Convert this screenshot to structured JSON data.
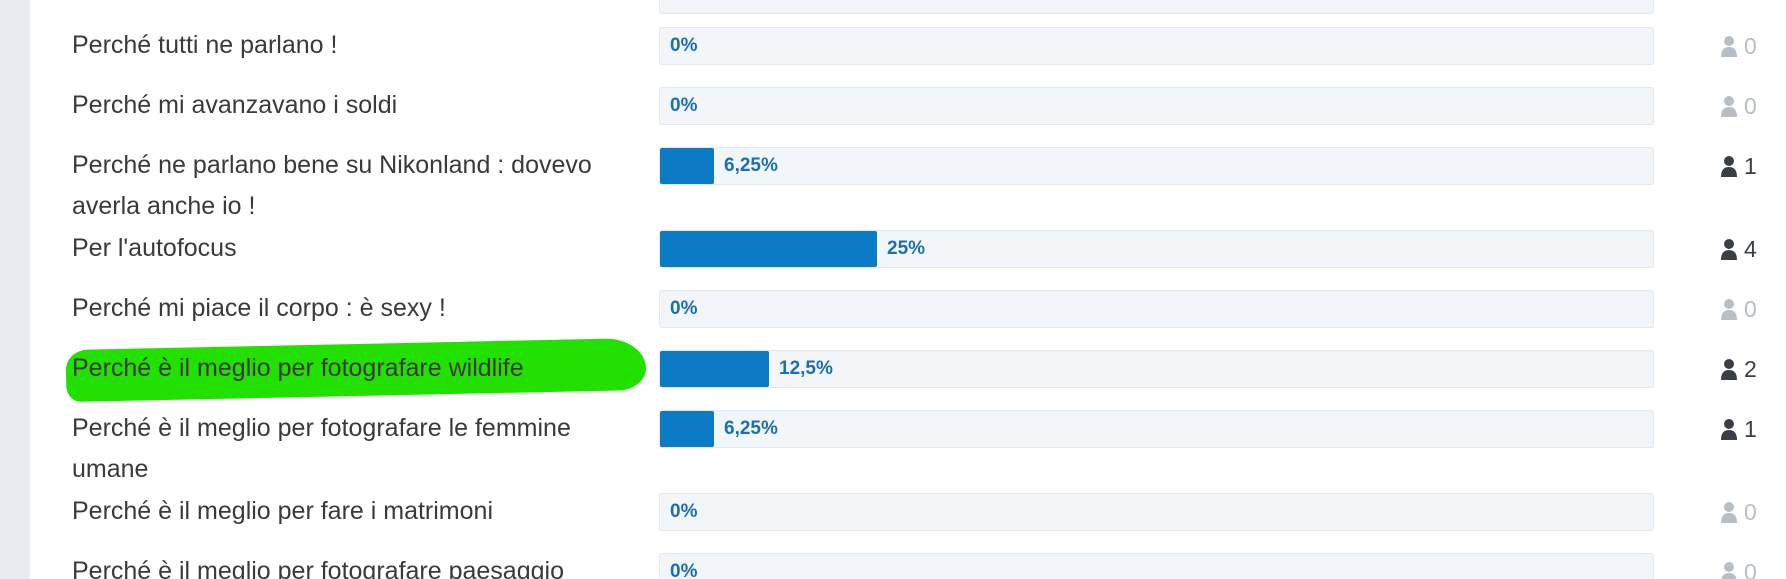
{
  "poll": {
    "options": [
      {
        "label": "Perché tutti ne parlano !",
        "percent_text": "0%",
        "percent": 0,
        "voters": "0"
      },
      {
        "label": "Perché mi avanzavano i soldi",
        "percent_text": "0%",
        "percent": 0,
        "voters": "0"
      },
      {
        "label": "Perché ne parlano bene su Nikonland : dovevo averla anche io !",
        "percent_text": "6,25%",
        "percent": 6.25,
        "voters": "1"
      },
      {
        "label": "Per l'autofocus",
        "percent_text": "25%",
        "percent": 25,
        "voters": "4"
      },
      {
        "label": "Perché mi piace il corpo : è sexy !",
        "percent_text": "0%",
        "percent": 0,
        "voters": "0"
      },
      {
        "label": "Perché è il meglio per fotografare wildlife",
        "percent_text": "12,5%",
        "percent": 12.5,
        "voters": "2",
        "highlighted": true
      },
      {
        "label": "Perché è il meglio per fotografare le femmine umane",
        "percent_text": "6,25%",
        "percent": 6.25,
        "voters": "1"
      },
      {
        "label": "Perché è il meglio per fare i matrimoni",
        "percent_text": "0%",
        "percent": 0,
        "voters": "0"
      },
      {
        "label": "Perché è il meglio per fotografare paesaggio",
        "percent_text": "0%",
        "percent": 0,
        "voters": "0"
      }
    ]
  },
  "colors": {
    "bar_fill": "#0a7bc4",
    "bar_track": "#f2f6f9",
    "percent_text": "#1b6fae",
    "highlight": "#22e000",
    "zero_voter_icon": "#b8bec6",
    "voter_icon": "#3a3f46"
  },
  "icons": {
    "voter": "person-icon"
  }
}
